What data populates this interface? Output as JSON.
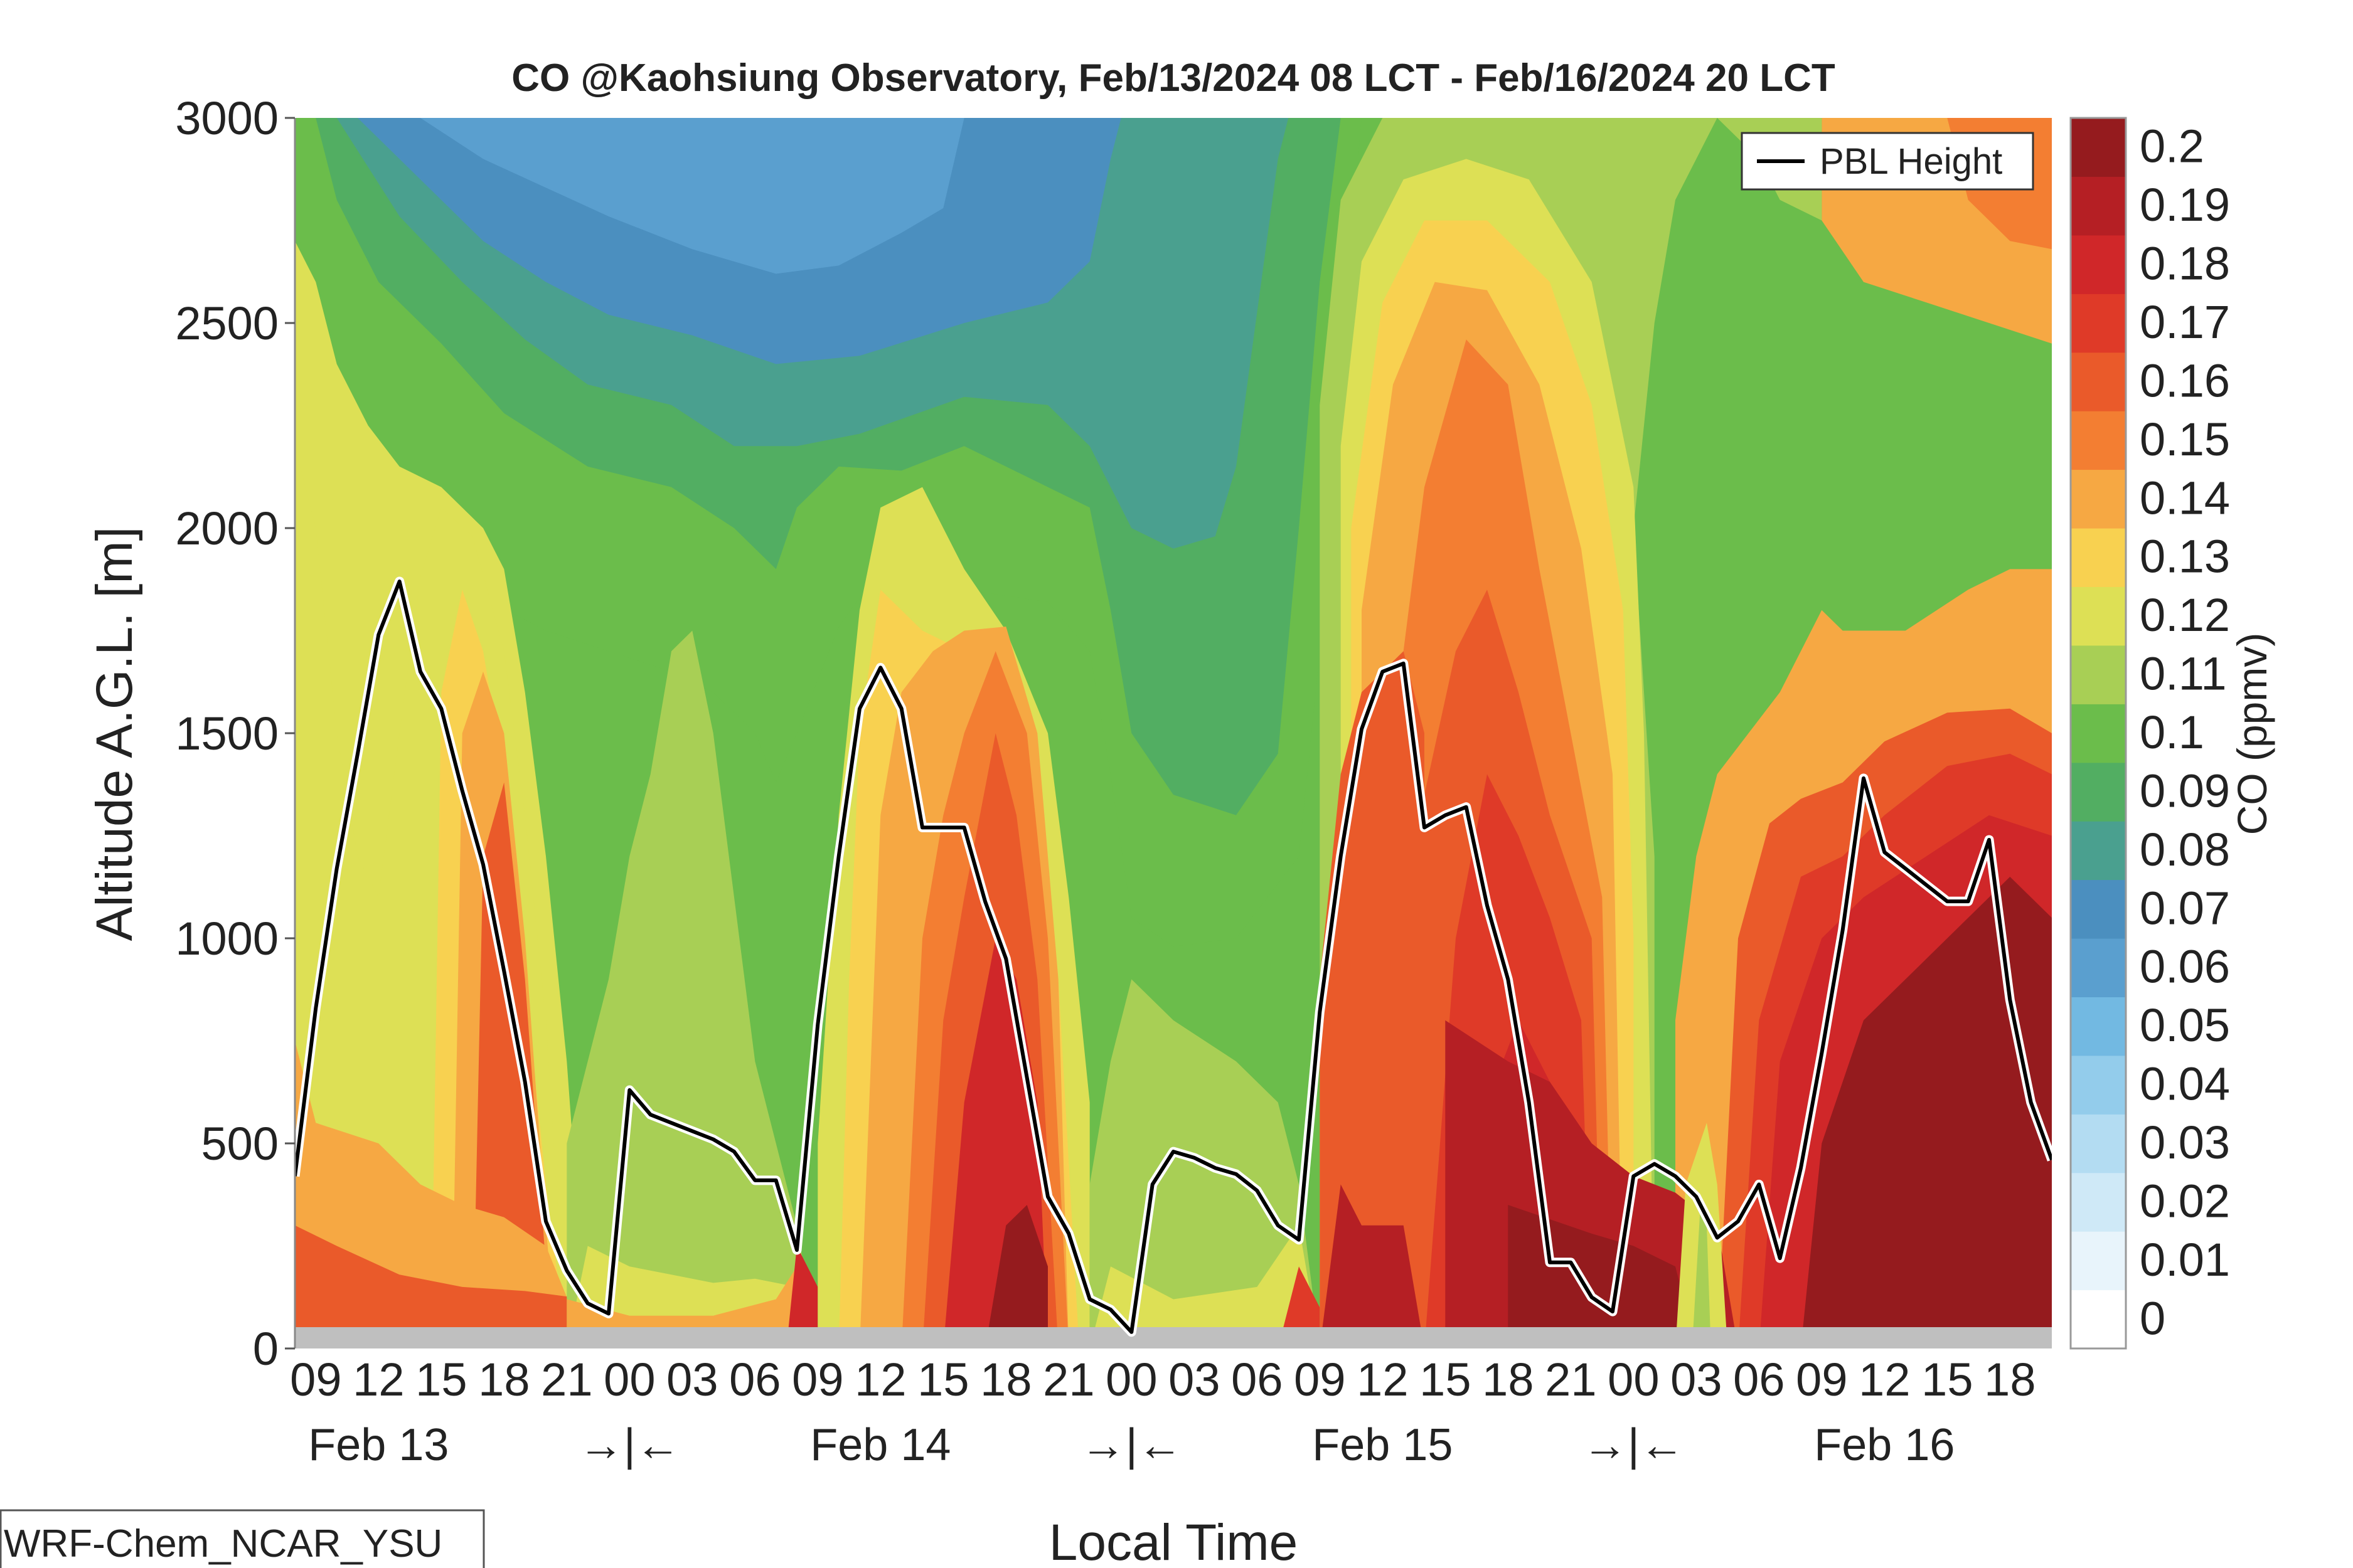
{
  "chart_data": {
    "type": "heatmap",
    "title": "CO @Kaohsiung Observatory, Feb/13/2024 08 LCT - Feb/16/2024 20 LCT",
    "xlabel": "Local Time",
    "ylabel": "Altitude A.G.L. [m]",
    "colorbar_label": "CO (ppmv)",
    "ylim": [
      0,
      3000
    ],
    "y_ticks": [
      "0",
      "500",
      "1000",
      "1500",
      "2000",
      "2500",
      "3000"
    ],
    "x_range_hours": [
      8,
      92
    ],
    "x_tick_labels": [
      "09",
      "12",
      "15",
      "18",
      "21",
      "00",
      "03",
      "06",
      "09",
      "12",
      "15",
      "18",
      "21",
      "00",
      "03",
      "06",
      "09",
      "12",
      "15",
      "18",
      "21",
      "00",
      "03",
      "06",
      "09",
      "12",
      "15",
      "18"
    ],
    "x_tick_hours": [
      9,
      12,
      15,
      18,
      21,
      24,
      27,
      30,
      33,
      36,
      39,
      42,
      45,
      48,
      51,
      54,
      57,
      60,
      63,
      66,
      69,
      72,
      75,
      78,
      81,
      84,
      87,
      90
    ],
    "day_labels": [
      "Feb 13",
      "Feb 14",
      "Feb 15",
      "Feb 16"
    ],
    "midnight_marker": "→|←",
    "colorbar_ticks": [
      "0",
      "0.01",
      "0.02",
      "0.03",
      "0.04",
      "0.05",
      "0.06",
      "0.07",
      "0.08",
      "0.09",
      "0.1",
      "0.11",
      "0.12",
      "0.13",
      "0.14",
      "0.15",
      "0.16",
      "0.17",
      "0.18",
      "0.19",
      "0.2"
    ],
    "colorbar_colors": [
      "#ffffff",
      "#e8f4fb",
      "#cfe9f7",
      "#b3dcf2",
      "#93cceb",
      "#72b9e2",
      "#5a9fcf",
      "#4b8fbf",
      "#4aa08f",
      "#52ae62",
      "#6bbd4b",
      "#a8cf55",
      "#dde055",
      "#f8d150",
      "#f6a843",
      "#f37e32",
      "#ea5a2a",
      "#df3a28",
      "#d02729",
      "#b51f24",
      "#951b1e"
    ],
    "legend": {
      "label": "PBL Height",
      "color": "#000000",
      "position": "top-right"
    },
    "series": [
      {
        "name": "PBL Height",
        "x": [
          8,
          9,
          10,
          11,
          12,
          13,
          14,
          15,
          16,
          17,
          18,
          19,
          20,
          21,
          22,
          23,
          24,
          25,
          26,
          27,
          28,
          29,
          30,
          31,
          32,
          33,
          34,
          35,
          36,
          37,
          38,
          39,
          40,
          41,
          42,
          43,
          44,
          45,
          46,
          47,
          48,
          49,
          50,
          51,
          52,
          53,
          54,
          55,
          56,
          57,
          58,
          59,
          60,
          61,
          62,
          63,
          64,
          65,
          66,
          67,
          68,
          69,
          70,
          71,
          72,
          73,
          74,
          75,
          76,
          77,
          78,
          79,
          80,
          81,
          82,
          83,
          84,
          85,
          86,
          87,
          88,
          89,
          90,
          91,
          92
        ],
        "y": [
          420,
          830,
          1170,
          1450,
          1740,
          1870,
          1650,
          1560,
          1360,
          1180,
          920,
          650,
          310,
          190,
          110,
          85,
          630,
          570,
          550,
          530,
          510,
          480,
          410,
          410,
          240,
          790,
          1200,
          1560,
          1660,
          1560,
          1270,
          1270,
          1270,
          1090,
          950,
          660,
          370,
          280,
          120,
          95,
          40,
          400,
          480,
          465,
          440,
          425,
          385,
          300,
          265,
          820,
          1200,
          1510,
          1650,
          1670,
          1270,
          1300,
          1320,
          1080,
          900,
          600,
          210,
          210,
          125,
          90,
          420,
          450,
          420,
          370,
          270,
          310,
          400,
          220,
          440,
          720,
          1020,
          1390,
          1210,
          1170,
          1130,
          1090,
          1090,
          1240,
          850,
          600,
          460
        ]
      }
    ],
    "source_label": "WRF-Chem_NCAR_YSU"
  }
}
